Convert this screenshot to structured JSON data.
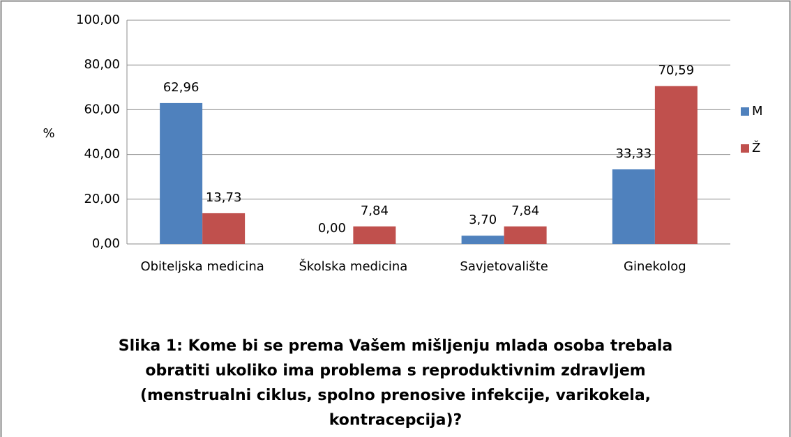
{
  "chart_data": {
    "type": "bar",
    "title": [
      "Slika 1: Kome bi se prema Vašem mišljenju mlada osoba trebala",
      "obratiti ukoliko ima problema s reproduktivnim zdravljem",
      "(menstrualni ciklus, spolno prenosive infekcije, varikokela,",
      "kontracepcija)?"
    ],
    "y_label": "%",
    "categories": [
      "Obiteljska medicina",
      "Školska medicina",
      "Savjetovalište",
      "Ginekolog"
    ],
    "series": [
      {
        "name": "M",
        "color": "#4f81bd",
        "values": [
          62.96,
          0,
          3.7,
          33.33
        ],
        "value_labels": [
          "62,96",
          "0,00",
          "3,70",
          "33,33"
        ]
      },
      {
        "name": "Ž",
        "color": "#c0504d",
        "values": [
          13.73,
          7.84,
          7.84,
          70.59
        ],
        "value_labels": [
          "13,73",
          "7,84",
          "7,84",
          "70,59"
        ]
      }
    ],
    "ylim": [
      0,
      100
    ],
    "yticks": [
      {
        "value": 0,
        "label": "0,00"
      },
      {
        "value": 20,
        "label": "20,00"
      },
      {
        "value": 40,
        "label": "40,00"
      },
      {
        "value": 60,
        "label": "60,00"
      },
      {
        "value": 80,
        "label": "80,00"
      },
      {
        "value": 100,
        "label": "100,00"
      }
    ],
    "grid": true,
    "legend": "right"
  }
}
